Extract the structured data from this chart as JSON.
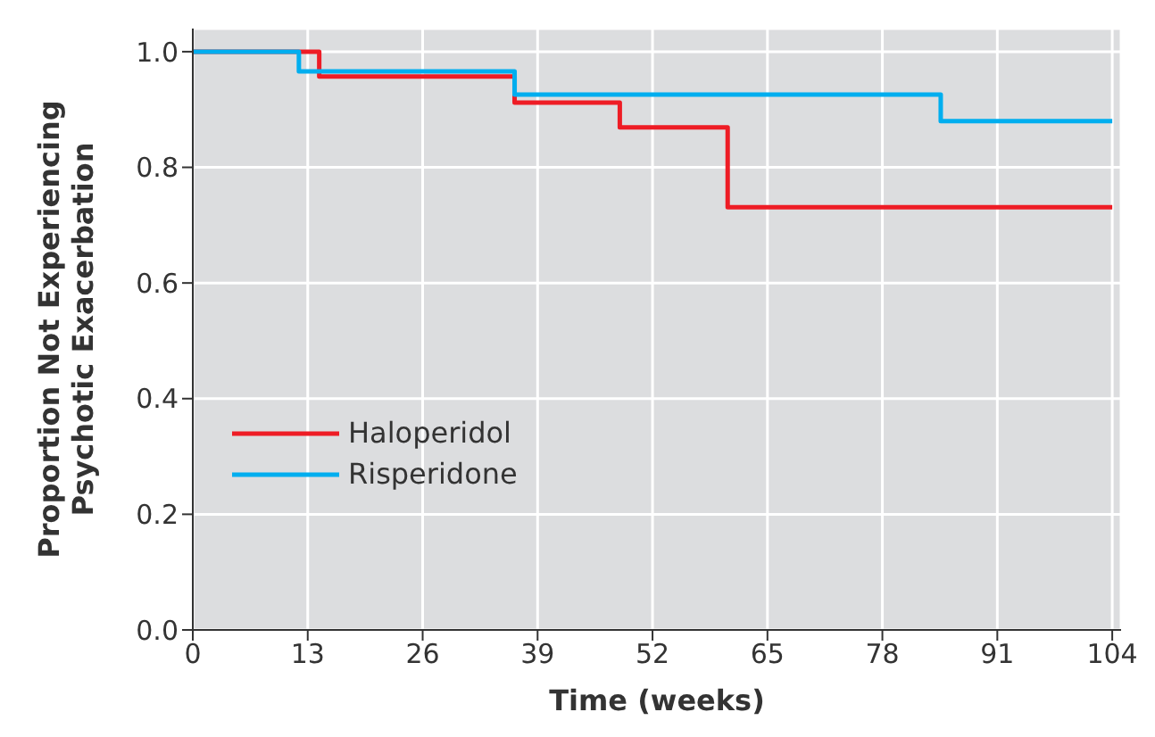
{
  "chart_data": {
    "type": "step",
    "xlabel": "Time (weeks)",
    "ylabel": "Proportion Not Experiencing\nPsychotic Exacerbation",
    "xlim": [
      0,
      105
    ],
    "xticks": [
      0,
      13,
      26,
      39,
      52,
      65,
      78,
      91,
      104
    ],
    "ylim": [
      0,
      1.04
    ],
    "yticks": [
      {
        "value": 0,
        "label": "0.0"
      },
      0.2,
      0.4,
      0.6,
      0.8,
      {
        "value": 1,
        "label": "1.0"
      }
    ],
    "grid": true,
    "legend": "bottom left",
    "line_style": "solid",
    "marker": "none",
    "series": [
      {
        "name": "Haloperidol",
        "color": "#ee1c25",
        "x": [
          0,
          14.3,
          36.4,
          48.3,
          60.5,
          104
        ],
        "values": [
          1,
          0.957,
          0.912,
          0.869,
          0.731,
          0.731
        ]
      },
      {
        "name": "Risperidone",
        "color": "#00aeef",
        "x": [
          0,
          12,
          36.4,
          84.6,
          104
        ],
        "values": [
          1,
          0.966,
          0.926,
          0.88,
          0.88
        ]
      }
    ]
  }
}
